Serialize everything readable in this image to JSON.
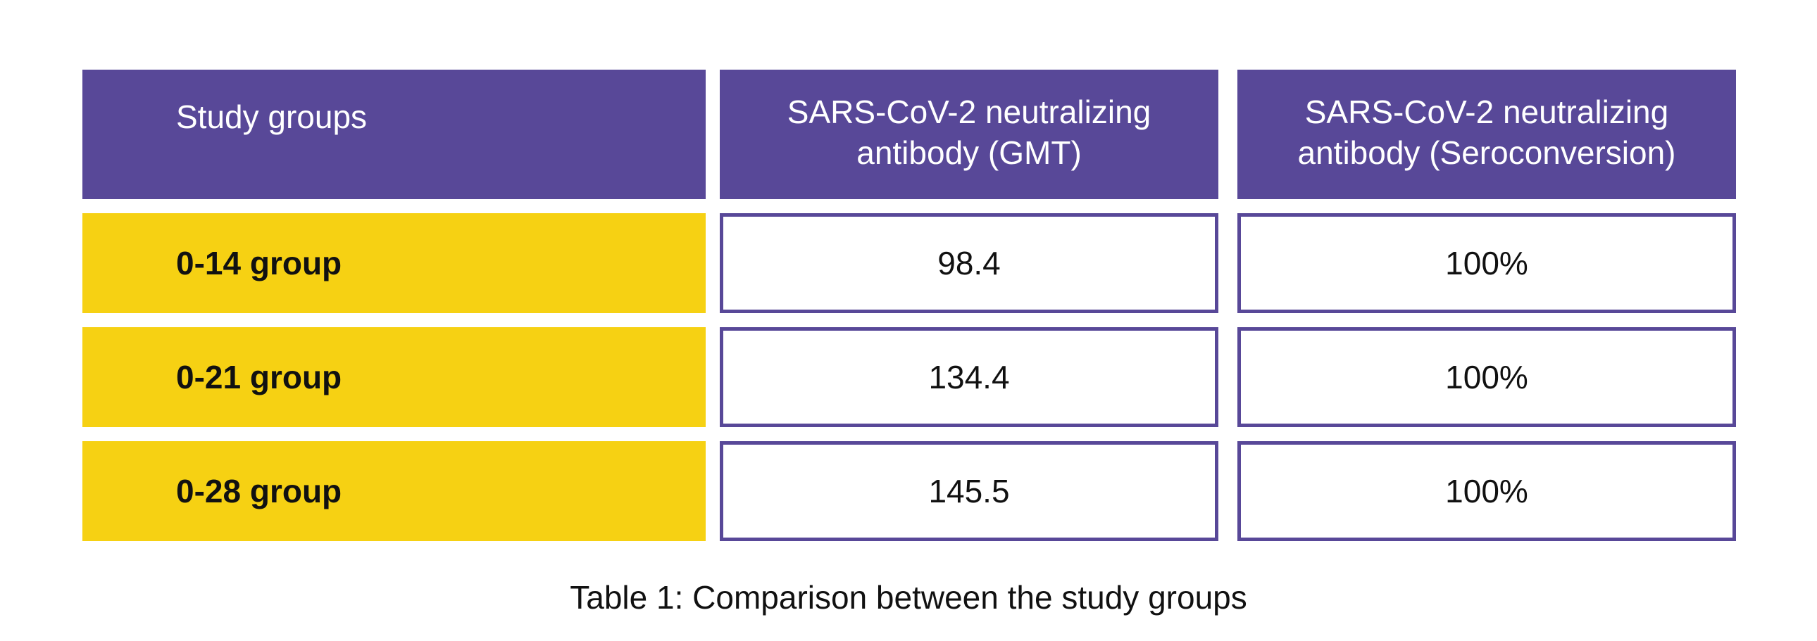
{
  "table": {
    "header": {
      "col1": "Study groups",
      "col2_line1": "SARS-CoV-2 neutralizing",
      "col2_line2": "antibody (GMT)",
      "col3_line1": "SARS-CoV-2 neutralizing",
      "col3_line2": "antibody (Seroconversion)"
    },
    "rows": [
      {
        "group": "0-14 group",
        "gmt": "98.4",
        "seroconversion": "100%"
      },
      {
        "group": "0-21 group",
        "gmt": "134.4",
        "seroconversion": "100%"
      },
      {
        "group": "0-28 group",
        "gmt": "145.5",
        "seroconversion": "100%"
      }
    ]
  },
  "caption": "Table 1: Comparison between the study groups",
  "colors": {
    "header_bg": "#584898",
    "group_bg": "#f6d113",
    "border": "#584898"
  }
}
